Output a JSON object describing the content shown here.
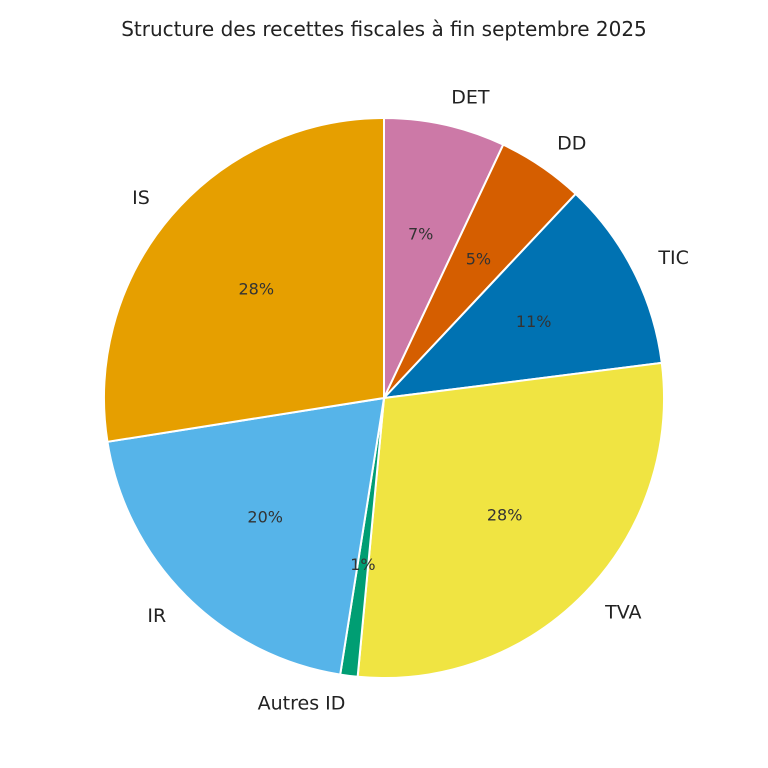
{
  "chart_data": {
    "type": "pie",
    "title": "Structure des recettes fiscales à fin septembre 2025",
    "start_angle_deg": 90,
    "direction": "clockwise",
    "slices": [
      {
        "label": "DET",
        "value": 7.0,
        "pct_label": "7%",
        "color": "#CC79A7"
      },
      {
        "label": "DD",
        "value": 5.0,
        "pct_label": "5%",
        "color": "#D55E00"
      },
      {
        "label": "TIC",
        "value": 11.0,
        "pct_label": "11%",
        "color": "#0072B2"
      },
      {
        "label": "TVA",
        "value": 28.5,
        "pct_label": "28%",
        "color": "#F0E442"
      },
      {
        "label": "Autres ID",
        "value": 1.0,
        "pct_label": "1%",
        "color": "#009E73"
      },
      {
        "label": "IR",
        "value": 20.0,
        "pct_label": "20%",
        "color": "#56B4E9"
      },
      {
        "label": "IS",
        "value": 27.5,
        "pct_label": "28%",
        "color": "#E69F00"
      }
    ]
  }
}
